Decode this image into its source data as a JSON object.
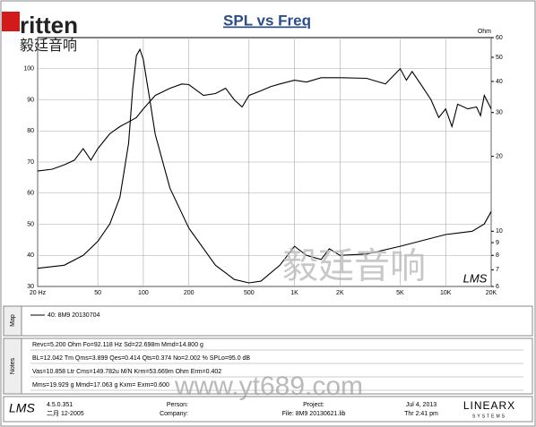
{
  "chart_data": {
    "type": "line",
    "title": "SPL vs Freq",
    "y2label": "Ohm",
    "xlog": true,
    "y2log": true,
    "grid": true,
    "xlim": [
      20,
      20000
    ],
    "ylim": [
      30,
      110
    ],
    "y2lim": [
      6,
      60
    ],
    "xticks": [
      {
        "value": 20,
        "label": "20 Hz"
      },
      50,
      100,
      200,
      500,
      {
        "value": 1000,
        "label": "1K"
      },
      {
        "value": 2000,
        "label": "2K"
      },
      {
        "value": 5000,
        "label": "5K"
      },
      {
        "value": 10000,
        "label": "10K"
      },
      {
        "value": 20000,
        "label": "20K"
      }
    ],
    "yticks": [
      30,
      40,
      50,
      60,
      70,
      80,
      90,
      100
    ],
    "y2ticks": [
      6,
      7,
      8,
      9,
      10,
      20,
      30,
      40,
      50,
      60
    ],
    "series": [
      {
        "name": "40: 8M9  20130704",
        "color": "#000000",
        "x": [
          20,
          25,
          30,
          35,
          40,
          45,
          50,
          60,
          70,
          80,
          90,
          100,
          120,
          150,
          180,
          200,
          250,
          300,
          350,
          400,
          450,
          500,
          600,
          700,
          800,
          1000,
          1200,
          1500,
          2000,
          3000,
          4000,
          5000,
          5500,
          6000,
          7000,
          8000,
          9000,
          10000,
          11000,
          12000,
          14000,
          16000,
          17000,
          18000,
          20000
        ],
        "values": [
          67.1,
          67.7,
          69.1,
          70.6,
          74.3,
          70.6,
          74.3,
          79.1,
          81.4,
          82.9,
          84.3,
          87.1,
          91.4,
          93.7,
          95.1,
          94.9,
          91.4,
          92,
          93.7,
          90,
          87.7,
          91.4,
          92.9,
          94.3,
          95.1,
          96.3,
          95.7,
          97.1,
          97.1,
          96.9,
          95.1,
          100,
          96.3,
          99.1,
          94.3,
          90,
          84.3,
          87.1,
          81.4,
          88.6,
          87.1,
          87.7,
          84.9,
          91.4,
          87.1
        ]
      },
      {
        "color": "#000000",
        "axis": "y2",
        "x": [
          20,
          30,
          40,
          50,
          60,
          70,
          80,
          85,
          90,
          95,
          100,
          110,
          120,
          150,
          200,
          300,
          400,
          500,
          600,
          800,
          1000,
          1200,
          1500,
          1700,
          2000,
          3000,
          5000,
          10000,
          15000,
          18000,
          20000
        ],
        "values": [
          7.1,
          7.3,
          8.0,
          9.1,
          10.7,
          13.7,
          22.6,
          37.2,
          50.8,
          53.8,
          49,
          34.2,
          24.5,
          14.9,
          10.3,
          7.3,
          6.4,
          6.2,
          6.3,
          7.3,
          8.7,
          8.0,
          7.7,
          8.5,
          8.0,
          8.1,
          8.7,
          9.7,
          10.0,
          10.7,
          12.0
        ]
      }
    ]
  },
  "logo": {
    "brand": "ritten",
    "chinese": "毅廷音响"
  },
  "watermark": {
    "chinese": "毅廷音响",
    "url": "www.yt689.com",
    "lms": "LMS"
  },
  "map": {
    "label": "Map",
    "legend": "40: 8M9  20130704"
  },
  "notes": {
    "label": "Notes",
    "lines": [
      "Revc=5.200 Ohm  Fo=92.118 Hz  Sd=22.698m  Mmd=14.800 g",
      "BL=12.042 Tm  Qms=3.899  Qes=0.414  Qts=0.374  No=2.002 %  SPLo=95.0 dB",
      "Vas=10.858 Ltr  Cms=149.782u M/N  Krm=53.669m Ohm  Erm=0.402",
      "Mms=19.929 g  Mmd=17.063 g  Kxm=  Exm=0.600"
    ]
  },
  "footer": {
    "lms": "LMS",
    "version": "4.5.0.351",
    "date": "二月 12-2005",
    "person": "Person:",
    "company": "Company:",
    "project": "Project:",
    "file": "File: 8M9  20130621.lib",
    "day": "Jul  4, 2013",
    "time": "Thr  2:41 pm",
    "brand": "LINEARX",
    "brand_sub": "SYSTEMS"
  }
}
